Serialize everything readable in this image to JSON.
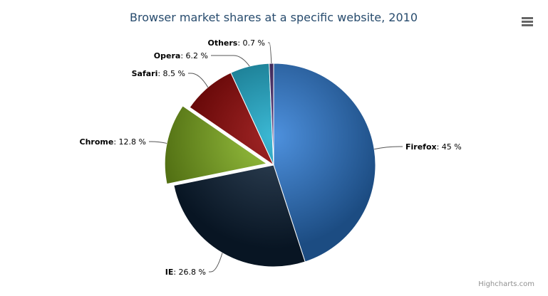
{
  "chart_data": {
    "type": "pie",
    "title": "Browser market shares at a specific website, 2010",
    "unit": "%",
    "slices": [
      {
        "name": "Firefox",
        "value": 45.0,
        "color": "#2f7ed8",
        "sliced": false
      },
      {
        "name": "IE",
        "value": 26.8,
        "color": "#0d233a",
        "sliced": false
      },
      {
        "name": "Chrome",
        "value": 12.8,
        "color": "#8bbc21",
        "sliced": true
      },
      {
        "name": "Safari",
        "value": 8.5,
        "color": "#910000",
        "sliced": false
      },
      {
        "name": "Opera",
        "value": 6.2,
        "color": "#1aadce",
        "sliced": false
      },
      {
        "name": "Others",
        "value": 0.7,
        "color": "#492970",
        "sliced": false
      }
    ]
  },
  "menu_icon": "hamburger-menu-icon",
  "credits": "Highcharts.com"
}
